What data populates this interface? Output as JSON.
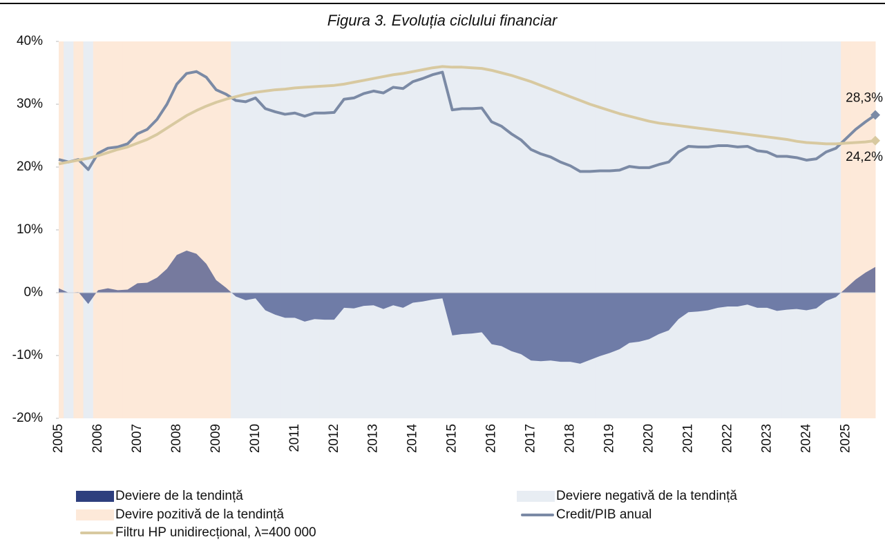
{
  "chart_data": {
    "type": "area-line",
    "title": "Figura 3. Evoluția ciclului financiar",
    "categories": [
      "2005",
      null,
      null,
      null,
      "2006",
      null,
      null,
      null,
      "2007",
      null,
      null,
      null,
      "2008",
      null,
      null,
      null,
      "2009",
      null,
      null,
      null,
      "2010",
      null,
      null,
      null,
      "2011",
      null,
      null,
      null,
      "2012",
      null,
      null,
      null,
      "2013",
      null,
      null,
      null,
      "2014",
      null,
      null,
      null,
      "2015",
      null,
      null,
      null,
      "2016",
      null,
      null,
      null,
      "2017",
      null,
      null,
      null,
      "2018",
      null,
      null,
      null,
      "2019",
      null,
      null,
      null,
      "2020",
      null,
      null,
      null,
      "2021",
      null,
      null,
      null,
      "2022",
      null,
      null,
      null,
      "2023",
      null,
      null,
      null,
      "2024",
      null,
      null,
      null,
      "2025",
      null,
      null,
      null
    ],
    "ylim": [
      -20,
      40
    ],
    "yticks": [
      {
        "value": -20,
        "label": "-20%"
      },
      {
        "value": -10,
        "label": "-10%"
      },
      {
        "value": 0,
        "label": "0%"
      },
      {
        "value": 10,
        "label": "10%"
      },
      {
        "value": 20,
        "label": "20%"
      },
      {
        "value": 30,
        "label": "30%"
      },
      {
        "value": 40,
        "label": "40%"
      }
    ],
    "shading": [
      {
        "name": "Deviere negativă de la tendință",
        "color": "#e8edf3"
      },
      {
        "name": "Devire pozitivă de la tendință",
        "color": "#fde9d9"
      }
    ],
    "series": [
      {
        "name": "Deviere de la tendință",
        "kind": "area",
        "color": "#2e3f7e",
        "values": [
          0.7,
          0.0,
          0.1,
          -1.8,
          0.4,
          0.7,
          0.4,
          0.5,
          1.5,
          1.6,
          2.4,
          3.8,
          6.0,
          6.7,
          6.2,
          4.6,
          2.0,
          0.8,
          -0.6,
          -1.2,
          -0.9,
          -2.8,
          -3.5,
          -4.0,
          -4.0,
          -4.6,
          -4.2,
          -4.3,
          -4.3,
          -2.4,
          -2.5,
          -2.1,
          -2.0,
          -2.6,
          -2.0,
          -2.4,
          -1.6,
          -1.4,
          -1.1,
          -0.9,
          -6.8,
          -6.6,
          -6.5,
          -6.3,
          -8.2,
          -8.5,
          -9.3,
          -9.8,
          -10.8,
          -10.9,
          -10.8,
          -11.0,
          -11.0,
          -11.3,
          -10.7,
          -10.1,
          -9.6,
          -9.0,
          -8.0,
          -7.8,
          -7.4,
          -6.6,
          -6.0,
          -4.2,
          -3.1,
          -3.0,
          -2.8,
          -2.4,
          -2.2,
          -2.2,
          -1.9,
          -2.4,
          -2.4,
          -2.9,
          -2.7,
          -2.6,
          -2.8,
          -2.5,
          -1.3,
          -0.7,
          0.7,
          2.1,
          3.2,
          4.1
        ]
      },
      {
        "name": "Credit/PIB anual",
        "kind": "line",
        "color": "#7b8aa5",
        "values": [
          21.2,
          20.8,
          21.2,
          19.6,
          22.2,
          23.0,
          23.2,
          23.7,
          25.3,
          26.0,
          27.6,
          30.0,
          33.2,
          34.9,
          35.2,
          34.3,
          32.3,
          31.6,
          30.6,
          30.4,
          31.0,
          29.3,
          28.8,
          28.4,
          28.6,
          28.1,
          28.6,
          28.6,
          28.7,
          30.8,
          31.0,
          31.7,
          32.1,
          31.8,
          32.7,
          32.5,
          33.6,
          34.1,
          34.7,
          35.1,
          29.1,
          29.3,
          29.3,
          29.4,
          27.2,
          26.5,
          25.3,
          24.3,
          22.8,
          22.1,
          21.6,
          20.8,
          20.2,
          19.3,
          19.3,
          19.4,
          19.4,
          19.5,
          20.1,
          19.9,
          19.9,
          20.4,
          20.8,
          22.4,
          23.3,
          23.2,
          23.2,
          23.4,
          23.4,
          23.2,
          23.3,
          22.6,
          22.4,
          21.7,
          21.7,
          21.5,
          21.1,
          21.3,
          22.4,
          23.0,
          24.5,
          26.0,
          27.2,
          28.3
        ],
        "value_labels": [
          null,
          null,
          null,
          null,
          null,
          null,
          null,
          null,
          null,
          null,
          null,
          null,
          null,
          null,
          null,
          null,
          null,
          null,
          null,
          null,
          null,
          null,
          null,
          null,
          null,
          null,
          null,
          null,
          null,
          null,
          null,
          null,
          null,
          null,
          null,
          null,
          null,
          null,
          null,
          null,
          null,
          null,
          null,
          null,
          null,
          null,
          null,
          null,
          null,
          null,
          null,
          null,
          null,
          null,
          null,
          null,
          null,
          null,
          null,
          null,
          null,
          null,
          null,
          null,
          null,
          null,
          null,
          null,
          null,
          null,
          null,
          null,
          null,
          null,
          null,
          null,
          null,
          null,
          null,
          null,
          null,
          null,
          null,
          "28,3%"
        ]
      },
      {
        "name": "Filtru HP unidirecțional, λ=400 000",
        "kind": "line",
        "color": "#d8c9a0",
        "values": [
          20.5,
          20.8,
          21.1,
          21.4,
          21.8,
          22.3,
          22.8,
          23.2,
          23.8,
          24.4,
          25.2,
          26.2,
          27.2,
          28.2,
          29.0,
          29.7,
          30.3,
          30.8,
          31.2,
          31.6,
          31.9,
          32.1,
          32.3,
          32.4,
          32.6,
          32.7,
          32.8,
          32.9,
          33.0,
          33.2,
          33.5,
          33.8,
          34.1,
          34.4,
          34.7,
          34.9,
          35.2,
          35.5,
          35.8,
          36.0,
          35.9,
          35.9,
          35.8,
          35.7,
          35.4,
          35.0,
          34.6,
          34.1,
          33.6,
          33.0,
          32.4,
          31.8,
          31.2,
          30.6,
          30.0,
          29.5,
          29.0,
          28.5,
          28.1,
          27.7,
          27.3,
          27.0,
          26.8,
          26.6,
          26.4,
          26.2,
          26.0,
          25.8,
          25.6,
          25.4,
          25.2,
          25.0,
          24.8,
          24.6,
          24.4,
          24.1,
          23.9,
          23.8,
          23.7,
          23.7,
          23.8,
          23.9,
          24.0,
          24.2
        ],
        "value_labels": [
          null,
          null,
          null,
          null,
          null,
          null,
          null,
          null,
          null,
          null,
          null,
          null,
          null,
          null,
          null,
          null,
          null,
          null,
          null,
          null,
          null,
          null,
          null,
          null,
          null,
          null,
          null,
          null,
          null,
          null,
          null,
          null,
          null,
          null,
          null,
          null,
          null,
          null,
          null,
          null,
          null,
          null,
          null,
          null,
          null,
          null,
          null,
          null,
          null,
          null,
          null,
          null,
          null,
          null,
          null,
          null,
          null,
          null,
          null,
          null,
          null,
          null,
          null,
          null,
          null,
          null,
          null,
          null,
          null,
          null,
          null,
          null,
          null,
          null,
          null,
          null,
          null,
          null,
          null,
          null,
          null,
          null,
          null,
          "24,2%"
        ]
      }
    ]
  }
}
